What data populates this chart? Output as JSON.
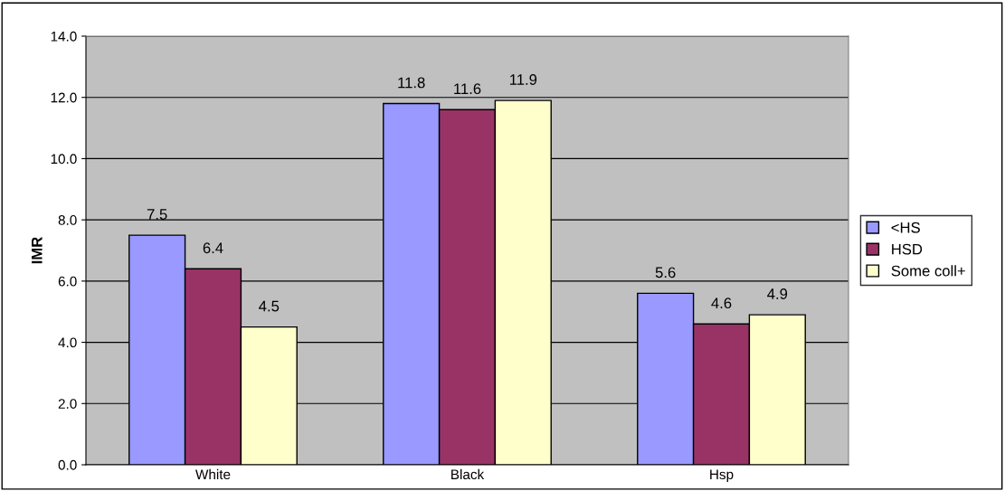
{
  "chart_data": {
    "type": "bar",
    "ylabel": "IMR",
    "categories": [
      "White",
      "Black",
      "Hsp"
    ],
    "series": [
      {
        "name": "<HS",
        "color": "#9999ff",
        "values": [
          7.5,
          11.8,
          5.6
        ]
      },
      {
        "name": "HSD",
        "color": "#993366",
        "values": [
          6.4,
          11.6,
          4.6
        ]
      },
      {
        "name": "Some coll+",
        "color": "#ffffcc",
        "values": [
          4.5,
          11.9,
          4.9
        ]
      }
    ],
    "ylim": [
      0,
      14
    ],
    "yticks": [
      {
        "value": 0,
        "label": "0.0"
      },
      {
        "value": 2,
        "label": "2.0"
      },
      {
        "value": 4,
        "label": "4.0"
      },
      {
        "value": 6,
        "label": "6.0"
      },
      {
        "value": 8,
        "label": "8.0"
      },
      {
        "value": 10,
        "label": "10.0"
      },
      {
        "value": 12,
        "label": "12.0"
      },
      {
        "value": 14,
        "label": "14.0"
      }
    ],
    "grid": "y",
    "legend": "right",
    "data_labels": true
  }
}
